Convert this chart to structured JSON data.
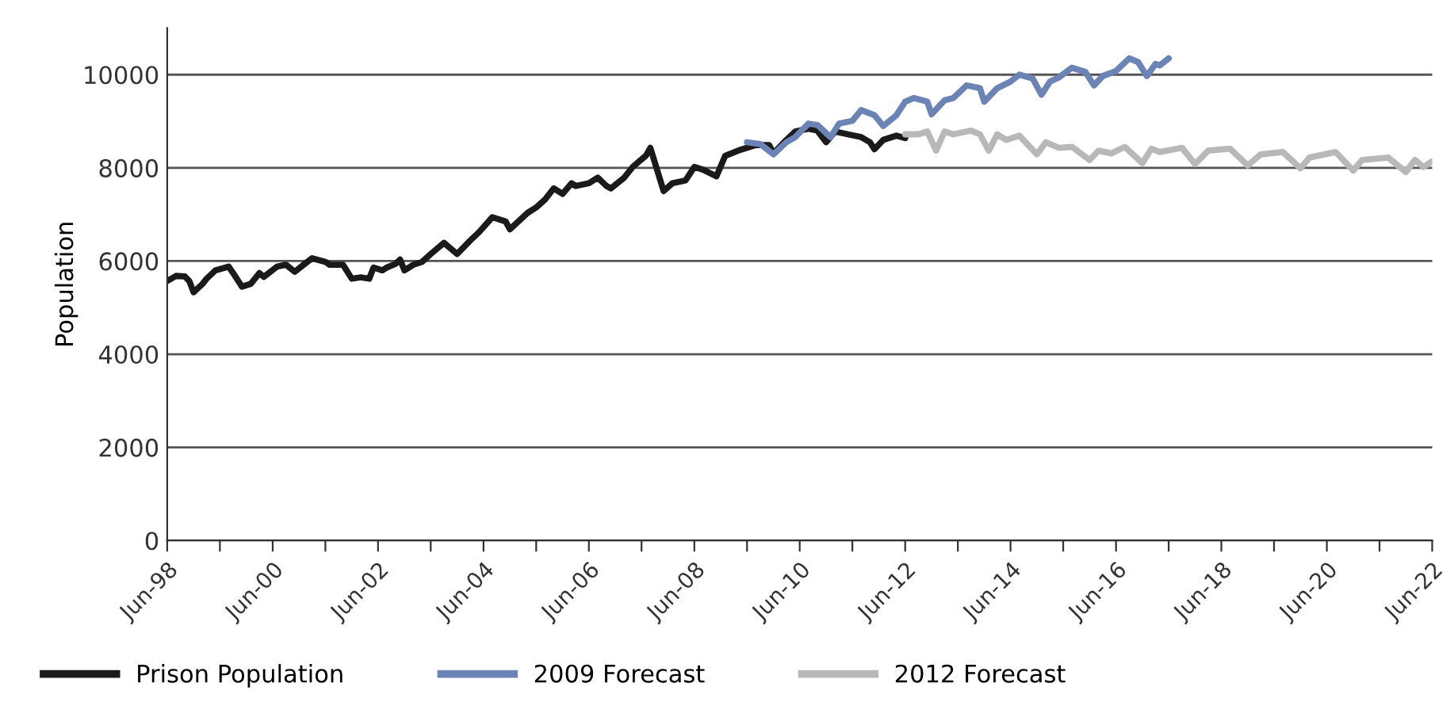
{
  "chart_data": {
    "type": "line",
    "ylabel": "Population",
    "series": [
      {
        "name": "Prison Population",
        "color": "#1a1a1a",
        "x": [
          "1998-06",
          "1998-08",
          "1998-10",
          "1998-11",
          "1998-12",
          "1999-02",
          "1999-03",
          "1999-05",
          "1999-08",
          "1999-09",
          "1999-11",
          "2000-01",
          "2000-03",
          "2000-04",
          "2000-07",
          "2000-09",
          "2000-11",
          "2001-01",
          "2001-03",
          "2001-06",
          "2001-07",
          "2001-10",
          "2001-12",
          "2002-02",
          "2002-04",
          "2002-05",
          "2002-07",
          "2002-08",
          "2002-10",
          "2002-11",
          "2002-12",
          "2003-02",
          "2003-04",
          "2003-06",
          "2003-09",
          "2003-12",
          "2004-03",
          "2004-05",
          "2004-08",
          "2004-11",
          "2004-12",
          "2005-04",
          "2005-06",
          "2005-08",
          "2005-10",
          "2005-12",
          "2006-02",
          "2006-03",
          "2006-06",
          "2006-08",
          "2006-10",
          "2006-11",
          "2007-02",
          "2007-04",
          "2007-07",
          "2007-08",
          "2007-11",
          "2008-01",
          "2008-04",
          "2008-06",
          "2008-08",
          "2008-11",
          "2009-01",
          "2009-04",
          "2009-06",
          "2009-08",
          "2009-11",
          "2009-12",
          "2010-03",
          "2010-05",
          "2010-08",
          "2010-10",
          "2010-12",
          "2011-02",
          "2011-05",
          "2011-08",
          "2011-10",
          "2011-11",
          "2012-01",
          "2012-04",
          "2012-06"
        ],
        "values": [
          5570,
          5680,
          5670,
          5570,
          5330,
          5510,
          5620,
          5800,
          5880,
          5740,
          5450,
          5510,
          5740,
          5660,
          5880,
          5920,
          5770,
          5920,
          6060,
          5980,
          5920,
          5920,
          5620,
          5650,
          5620,
          5860,
          5800,
          5860,
          5940,
          6030,
          5800,
          5920,
          5980,
          6150,
          6390,
          6150,
          6440,
          6620,
          6940,
          6850,
          6680,
          7030,
          7150,
          7320,
          7560,
          7440,
          7670,
          7610,
          7670,
          7790,
          7610,
          7560,
          7790,
          8020,
          8260,
          8430,
          7500,
          7670,
          7730,
          8020,
          7960,
          7820,
          8260,
          8370,
          8430,
          8490,
          8490,
          8310,
          8600,
          8780,
          8840,
          8800,
          8550,
          8780,
          8720,
          8660,
          8550,
          8400,
          8600,
          8690,
          8640
        ]
      },
      {
        "name": "2009 Forecast",
        "color": "#6b83b5",
        "x": [
          "2009-06",
          "2009-09",
          "2009-12",
          "2010-03",
          "2010-05",
          "2010-08",
          "2010-10",
          "2011-01",
          "2011-03",
          "2011-06",
          "2011-08",
          "2011-11",
          "2012-01",
          "2012-04",
          "2012-06",
          "2012-08",
          "2012-11",
          "2012-12",
          "2013-03",
          "2013-05",
          "2013-08",
          "2013-11",
          "2013-12",
          "2014-03",
          "2014-06",
          "2014-08",
          "2014-11",
          "2015-01",
          "2015-03",
          "2015-05",
          "2015-08",
          "2015-11",
          "2016-01",
          "2016-03",
          "2016-06",
          "2016-09",
          "2016-11",
          "2017-01",
          "2017-03",
          "2017-04",
          "2017-06"
        ],
        "values": [
          8550,
          8510,
          8290,
          8550,
          8660,
          8950,
          8920,
          8660,
          8950,
          9010,
          9240,
          9130,
          8900,
          9130,
          9420,
          9500,
          9420,
          9150,
          9450,
          9500,
          9770,
          9710,
          9420,
          9710,
          9850,
          10000,
          9920,
          9570,
          9850,
          9940,
          10150,
          10060,
          9770,
          9970,
          10080,
          10350,
          10270,
          9970,
          10230,
          10200,
          10350
        ]
      },
      {
        "name": "2012 Forecast",
        "color": "#b8b8b8",
        "x": [
          "2012-06",
          "2012-09",
          "2012-11",
          "2013-01",
          "2013-03",
          "2013-05",
          "2013-09",
          "2013-11",
          "2014-01",
          "2014-03",
          "2014-05",
          "2014-08",
          "2014-12",
          "2015-02",
          "2015-05",
          "2015-08",
          "2015-12",
          "2016-02",
          "2016-05",
          "2016-08",
          "2016-12",
          "2017-02",
          "2017-04",
          "2017-09",
          "2017-12",
          "2018-03",
          "2018-08",
          "2018-12",
          "2019-03",
          "2019-08",
          "2019-12",
          "2020-02",
          "2020-08",
          "2020-12",
          "2021-02",
          "2021-08",
          "2021-12",
          "2022-02",
          "2022-04",
          "2022-06"
        ],
        "values": [
          8720,
          8720,
          8780,
          8370,
          8780,
          8720,
          8800,
          8720,
          8370,
          8720,
          8600,
          8690,
          8290,
          8550,
          8430,
          8450,
          8170,
          8370,
          8310,
          8450,
          8100,
          8410,
          8340,
          8430,
          8080,
          8370,
          8410,
          8050,
          8290,
          8340,
          7990,
          8220,
          8340,
          7940,
          8170,
          8220,
          7910,
          8170,
          8020,
          8140
        ]
      }
    ],
    "xlim": [
      "1998-06",
      "2022-06"
    ],
    "xticks": [
      {
        "value": "1998-06",
        "label": "Jun-98"
      },
      {
        "value": "1999-06",
        "label": null
      },
      {
        "value": "2000-06",
        "label": "Jun-00"
      },
      {
        "value": "2001-06",
        "label": null
      },
      {
        "value": "2002-06",
        "label": "Jun-02"
      },
      {
        "value": "2003-06",
        "label": null
      },
      {
        "value": "2004-06",
        "label": "Jun-04"
      },
      {
        "value": "2005-06",
        "label": null
      },
      {
        "value": "2006-06",
        "label": "Jun-06"
      },
      {
        "value": "2007-06",
        "label": null
      },
      {
        "value": "2008-06",
        "label": "Jun-08"
      },
      {
        "value": "2009-06",
        "label": null
      },
      {
        "value": "2010-06",
        "label": "Jun-10"
      },
      {
        "value": "2011-06",
        "label": null
      },
      {
        "value": "2012-06",
        "label": "Jun-12"
      },
      {
        "value": "2013-06",
        "label": null
      },
      {
        "value": "2014-06",
        "label": "Jun-14"
      },
      {
        "value": "2015-06",
        "label": null
      },
      {
        "value": "2016-06",
        "label": "Jun-16"
      },
      {
        "value": "2017-06",
        "label": null
      },
      {
        "value": "2018-06",
        "label": "Jun-18"
      },
      {
        "value": "2019-06",
        "label": null
      },
      {
        "value": "2020-06",
        "label": "Jun-20"
      },
      {
        "value": "2021-06",
        "label": null
      },
      {
        "value": "2022-06",
        "label": "Jun-22"
      }
    ],
    "ylim": [
      0,
      11000
    ],
    "yticks": [
      0,
      2000,
      4000,
      6000,
      8000,
      10000
    ],
    "grid": "y",
    "legend": "bottom left",
    "marker": "none",
    "line_style": "solid"
  }
}
